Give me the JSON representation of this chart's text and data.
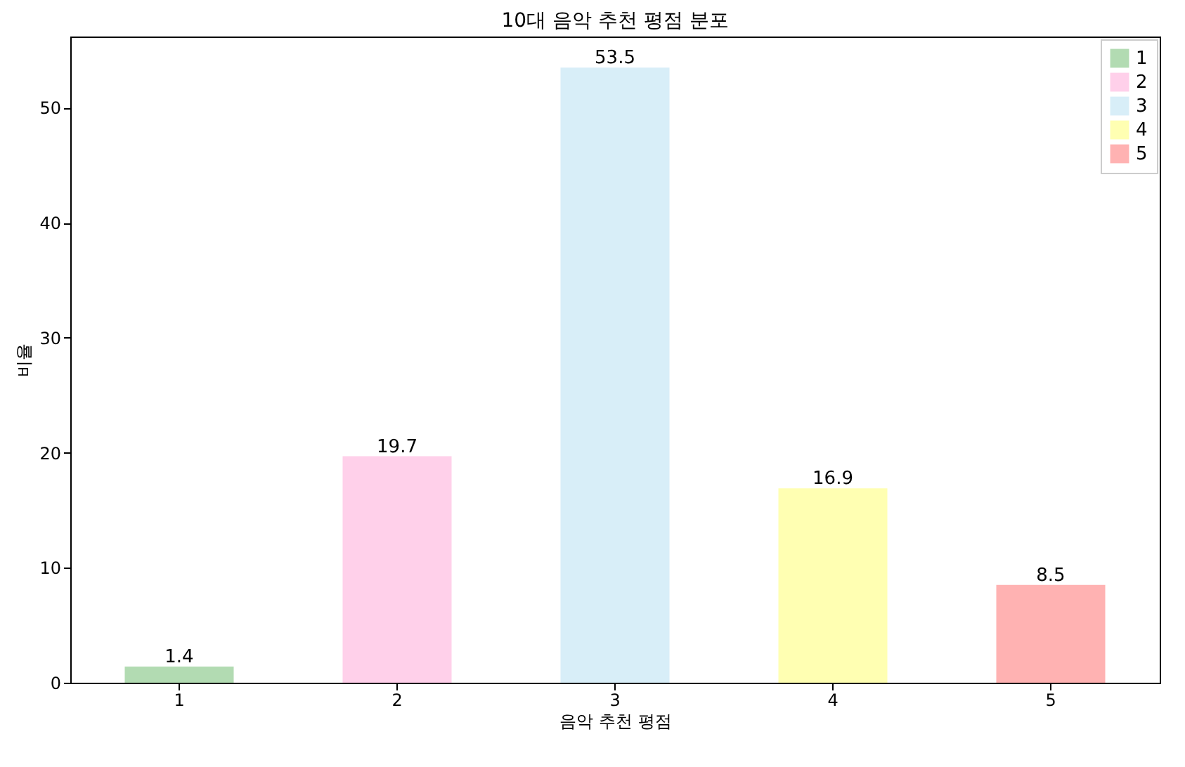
{
  "chart_data": {
    "type": "bar",
    "title": "10대 음악 추천 평점 분포",
    "xlabel": "음악 추천 평점",
    "ylabel": "비율",
    "categories": [
      "1",
      "2",
      "3",
      "4",
      "5"
    ],
    "series": [
      {
        "name": "1",
        "color": "#b2dbb2",
        "values": [
          1.4,
          null,
          null,
          null,
          null
        ]
      },
      {
        "name": "2",
        "color": "#ffd0ea",
        "values": [
          null,
          19.7,
          null,
          null,
          null
        ]
      },
      {
        "name": "3",
        "color": "#d8eef8",
        "values": [
          null,
          null,
          53.5,
          null,
          null
        ]
      },
      {
        "name": "4",
        "color": "#ffffb2",
        "values": [
          null,
          null,
          null,
          16.9,
          null
        ]
      },
      {
        "name": "5",
        "color": "#ffb2b2",
        "values": [
          null,
          null,
          null,
          null,
          8.5
        ]
      }
    ],
    "ylim": [
      0,
      56.2
    ],
    "yticks": [
      0,
      10,
      20,
      30,
      40,
      50
    ],
    "data_labels": true,
    "legend": "top right",
    "grid": false
  }
}
